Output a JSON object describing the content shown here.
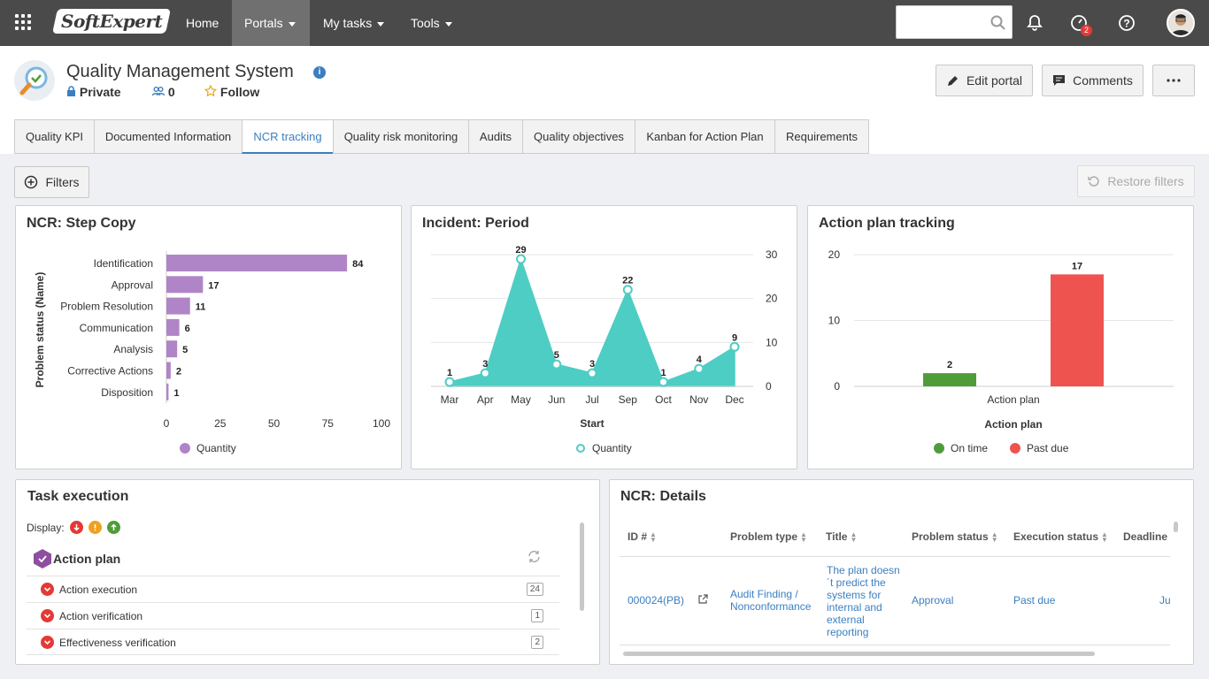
{
  "topbar": {
    "logo_text": "SoftExpert",
    "nav": [
      "Home",
      "Portals",
      "My tasks",
      "Tools"
    ],
    "active_nav": "Portals",
    "notification_badge": "2",
    "search_placeholder": ""
  },
  "portal": {
    "title": "Quality Management System",
    "privacy": "Private",
    "members": "0",
    "follow": "Follow",
    "edit_label": "Edit portal",
    "comments_label": "Comments"
  },
  "tabs": [
    "Quality KPI",
    "Documented Information",
    "NCR tracking",
    "Quality risk monitoring",
    "Audits",
    "Quality objectives",
    "Kanban for Action Plan",
    "Requirements"
  ],
  "active_tab": "NCR tracking",
  "toolbar": {
    "filters_label": "Filters",
    "restore_label": "Restore filters"
  },
  "ncr_step": {
    "title": "NCR: Step Copy",
    "legend": "Quantity"
  },
  "incident": {
    "title": "Incident: Period",
    "legend": "Quantity"
  },
  "action_plan": {
    "title": "Action plan tracking",
    "legend_on_time": "On time",
    "legend_past_due": "Past due"
  },
  "task_execution": {
    "title": "Task execution",
    "display_label": "Display:",
    "group_label": "Action plan",
    "rows": [
      {
        "label": "Action execution",
        "count": "24"
      },
      {
        "label": "Action verification",
        "count": "1"
      },
      {
        "label": "Effectiveness verification",
        "count": "2"
      }
    ]
  },
  "ncr_details": {
    "title": "NCR: Details",
    "columns": [
      "ID #",
      "Problem type",
      "Title",
      "Problem status",
      "Execution status",
      "Deadline"
    ],
    "row": {
      "id": "000024(PB)",
      "problem_type": "Audit Finding / Nonconformance",
      "title": "The plan doesn´t predict the systems for internal and external reporting",
      "problem_status": "Approval",
      "execution_status": "Past due",
      "deadline": "Ju"
    }
  },
  "chart_data": [
    {
      "type": "bar",
      "orientation": "horizontal",
      "title": "NCR: Step Copy",
      "ylabel": "Problem status (Name)",
      "xlabel": "",
      "categories": [
        "Identification",
        "Approval",
        "Problem Resolution",
        "Communication",
        "Analysis",
        "Corrective Actions",
        "Disposition"
      ],
      "series": [
        {
          "name": "Quantity",
          "values": [
            84,
            17,
            11,
            6,
            5,
            2,
            1
          ],
          "color": "#b085c7"
        }
      ],
      "xlim": [
        0,
        100
      ],
      "ticks": [
        "0",
        "25",
        "50",
        "75",
        "100"
      ],
      "legend": "bottom"
    },
    {
      "type": "area",
      "title": "Incident: Period",
      "xlabel": "Start",
      "ylabel": "",
      "categories": [
        "Mar",
        "Apr",
        "May",
        "Jun",
        "Jul",
        "Sep",
        "Oct",
        "Nov",
        "Dec"
      ],
      "series": [
        {
          "name": "Quantity",
          "values": [
            1,
            3,
            29,
            5,
            3,
            22,
            1,
            4,
            9
          ],
          "color": "#4ecdc4"
        }
      ],
      "ylim": [
        0,
        30
      ],
      "ticks": [
        "0",
        "10",
        "20",
        "30"
      ],
      "y_axis_position": "right",
      "legend": "bottom"
    },
    {
      "type": "bar",
      "title": "Action plan tracking",
      "xlabel": "Action plan",
      "categories": [
        "Action plan"
      ],
      "series": [
        {
          "name": "On time",
          "values": [
            2
          ],
          "color": "#4f9d3a"
        },
        {
          "name": "Past due",
          "values": [
            17
          ],
          "color": "#ef5350"
        }
      ],
      "ylim": [
        0,
        20
      ],
      "ticks": [
        "0",
        "10",
        "20"
      ],
      "legend": "bottom"
    }
  ]
}
